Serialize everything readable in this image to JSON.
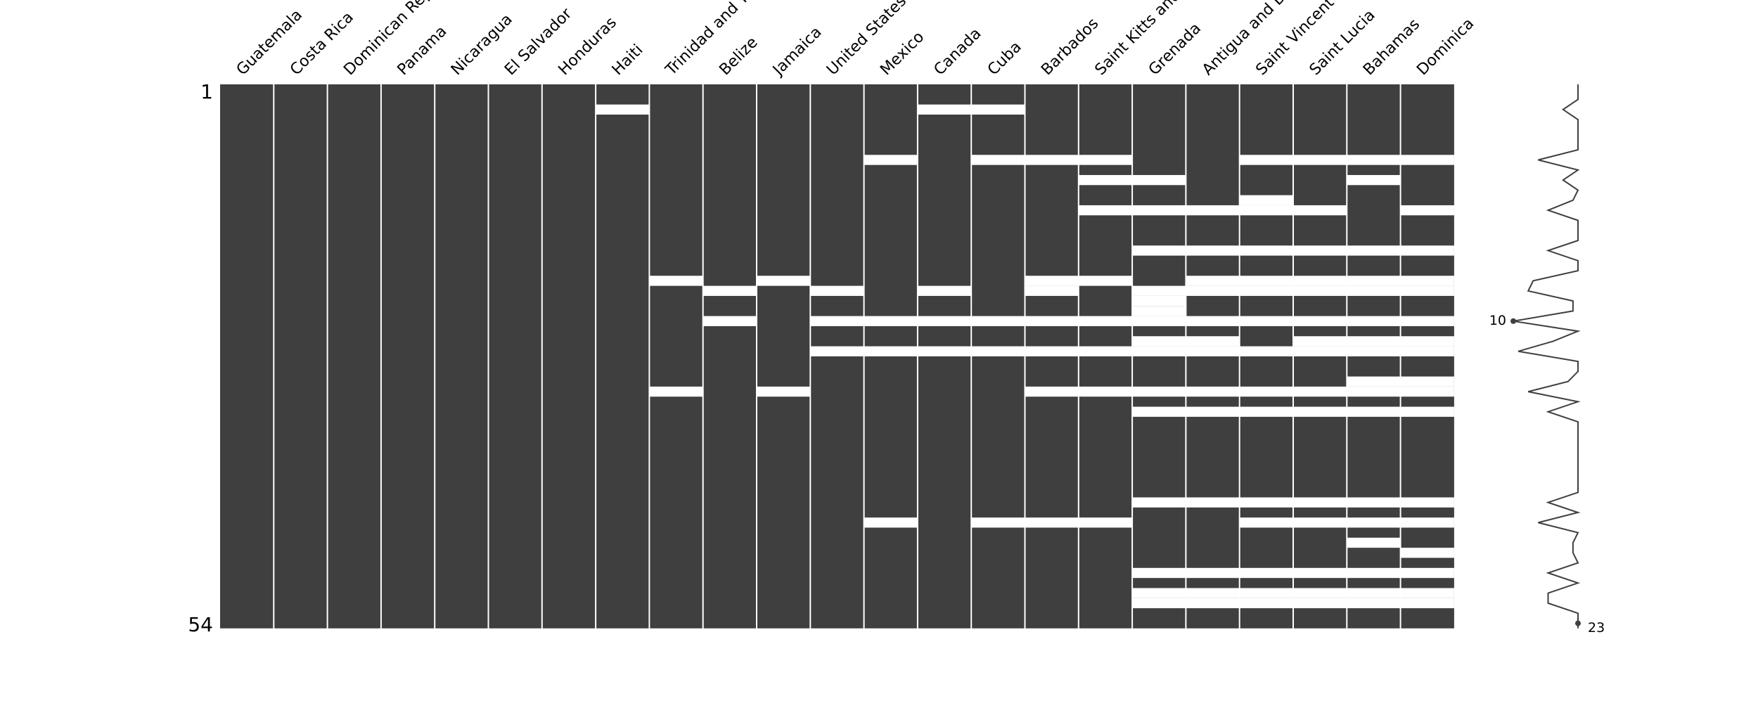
{
  "chart_data": {
    "type": "heatmap",
    "row_range": [
      "1",
      "54"
    ],
    "colors": {
      "present": "#3f3f3f",
      "missing": "#ffffff",
      "line": "#3f3f3f"
    },
    "columns": [
      {
        "name": "Guatemala",
        "missing_rows": []
      },
      {
        "name": "Costa Rica",
        "missing_rows": []
      },
      {
        "name": "Dominican Republic",
        "missing_rows": []
      },
      {
        "name": "Panama",
        "missing_rows": []
      },
      {
        "name": "Nicaragua",
        "missing_rows": []
      },
      {
        "name": "El Salvador",
        "missing_rows": []
      },
      {
        "name": "Honduras",
        "missing_rows": []
      },
      {
        "name": "Haiti",
        "missing_rows": [
          3
        ]
      },
      {
        "name": "Trinidad and Tobago",
        "missing_rows": [
          20,
          31
        ]
      },
      {
        "name": "Belize",
        "missing_rows": [
          21,
          24
        ]
      },
      {
        "name": "Jamaica",
        "missing_rows": [
          20,
          31
        ]
      },
      {
        "name": "United States",
        "missing_rows": [
          21,
          24,
          27
        ]
      },
      {
        "name": "Mexico",
        "missing_rows": [
          8,
          24,
          27,
          44
        ]
      },
      {
        "name": "Canada",
        "missing_rows": [
          3,
          21,
          24,
          27
        ]
      },
      {
        "name": "Cuba",
        "missing_rows": [
          3,
          8,
          24,
          27,
          44
        ]
      },
      {
        "name": "Barbados",
        "missing_rows": [
          8,
          20,
          21,
          24,
          27,
          31,
          44
        ]
      },
      {
        "name": "Saint Kitts and Nevis",
        "missing_rows": [
          8,
          10,
          13,
          20,
          24,
          27,
          31,
          44
        ]
      },
      {
        "name": "Grenada",
        "missing_rows": [
          10,
          13,
          17,
          21,
          22,
          23,
          24,
          26,
          27,
          31,
          33,
          42,
          49,
          51,
          52
        ]
      },
      {
        "name": "Antigua and Barbuda",
        "missing_rows": [
          13,
          17,
          20,
          21,
          24,
          26,
          27,
          31,
          33,
          42,
          49,
          51,
          52
        ]
      },
      {
        "name": "Saint Vincent and the Grenadines",
        "missing_rows": [
          8,
          12,
          13,
          17,
          20,
          21,
          24,
          27,
          31,
          33,
          42,
          44,
          49,
          51,
          52
        ]
      },
      {
        "name": "Saint Lucia",
        "missing_rows": [
          8,
          13,
          17,
          20,
          21,
          24,
          26,
          27,
          31,
          33,
          42,
          44,
          49,
          51,
          52
        ]
      },
      {
        "name": "Bahamas",
        "missing_rows": [
          8,
          10,
          17,
          20,
          21,
          24,
          26,
          27,
          30,
          31,
          33,
          42,
          44,
          46,
          49,
          51,
          52
        ]
      },
      {
        "name": "Dominica",
        "missing_rows": [
          8,
          13,
          17,
          20,
          21,
          24,
          26,
          27,
          30,
          31,
          33,
          42,
          44,
          47,
          49,
          51,
          52
        ]
      }
    ],
    "sparkline": {
      "min_label": "10",
      "max_label": "23"
    }
  }
}
